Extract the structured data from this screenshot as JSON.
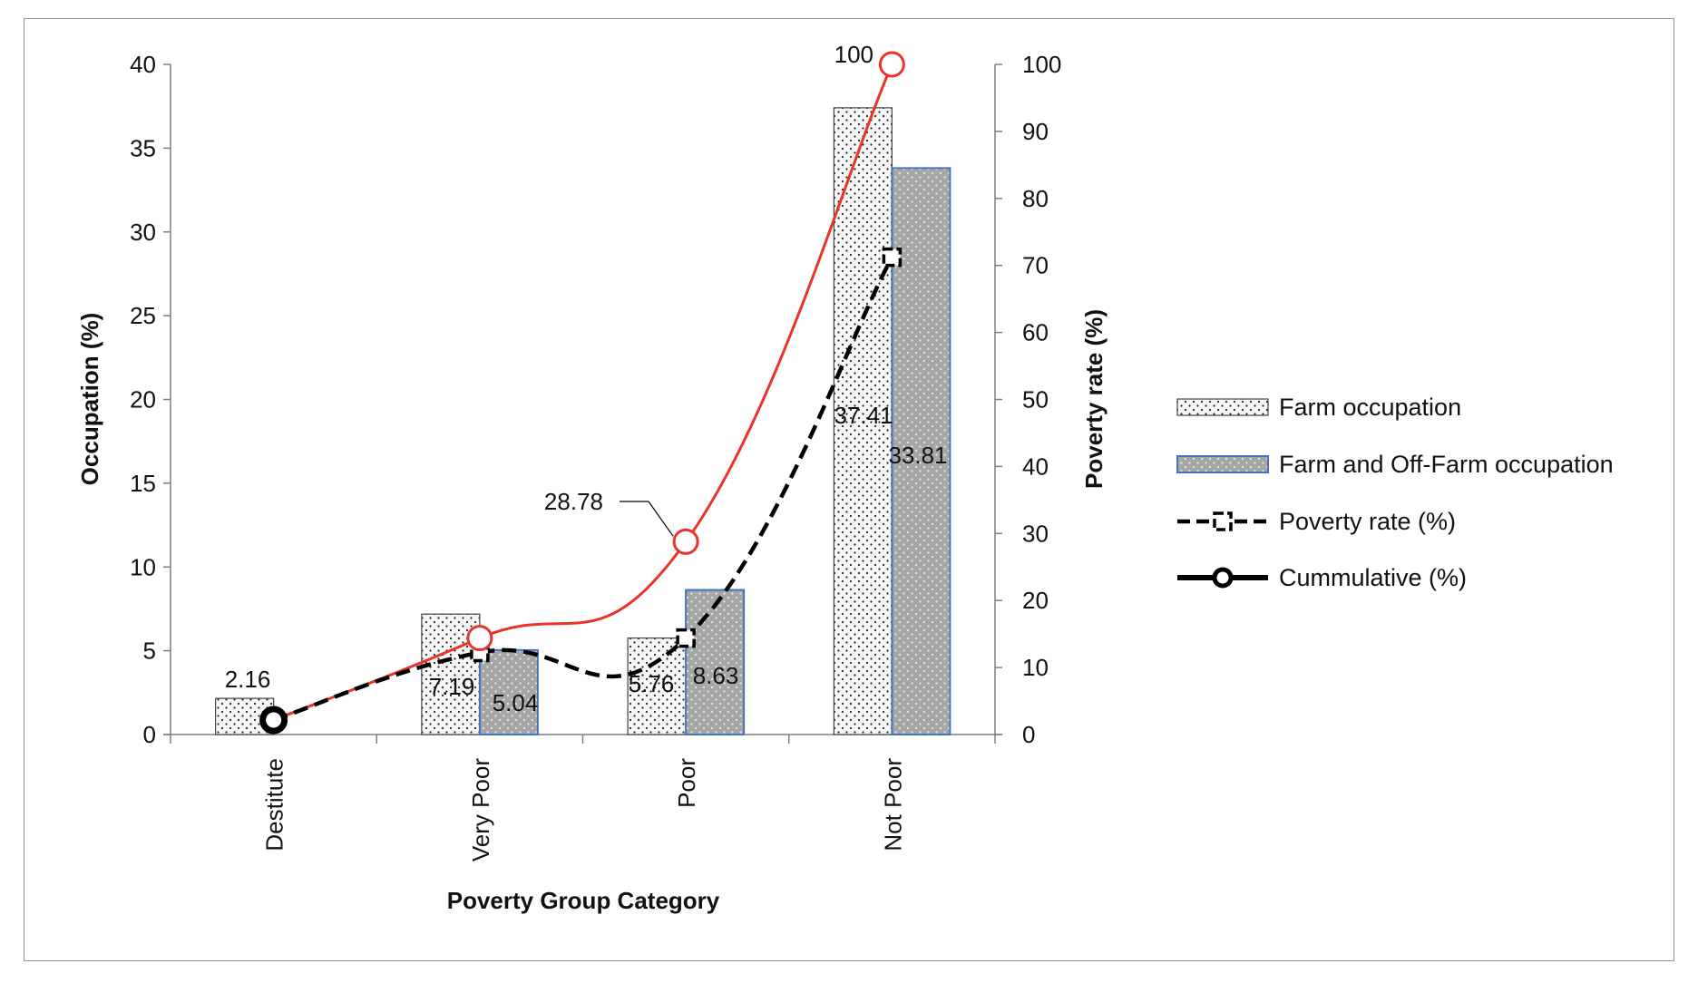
{
  "chart_data": {
    "type": "bar",
    "title": "",
    "categories": [
      "Destitute",
      "Very Poor",
      "Poor",
      "Not Poor"
    ],
    "xlabel": "Poverty Group Category",
    "ylabel": "Occupation (%)",
    "y2label": "Poverty rate (%)",
    "ylim": [
      0,
      40
    ],
    "y2lim": [
      0,
      100
    ],
    "yticks": [
      "0",
      "5",
      "10",
      "15",
      "20",
      "25",
      "30",
      "35",
      "40"
    ],
    "y2ticks": [
      "0",
      "10",
      "20",
      "30",
      "40",
      "50",
      "60",
      "70",
      "80",
      "90",
      "100"
    ],
    "legend_position": "right",
    "grid": false,
    "series": [
      {
        "name": "Farm occupation",
        "kind": "bar",
        "axis": "left",
        "values": [
          2.16,
          7.19,
          5.76,
          37.41
        ],
        "labels": [
          "2.16",
          "7.19",
          "5.76",
          "37.41"
        ],
        "color": "#f4f4f4",
        "edge": "#444444"
      },
      {
        "name": "Farm and Off-Farm occupation",
        "kind": "bar",
        "axis": "left",
        "values": [
          null,
          5.04,
          8.63,
          33.81
        ],
        "labels": [
          "",
          "5.04",
          "8.63",
          "33.81"
        ],
        "color": "#a6a6a6",
        "edge": "#4472c4"
      },
      {
        "name": "Poverty rate (%)",
        "kind": "line",
        "axis": "right",
        "values": [
          2.16,
          12.24,
          14.39,
          71.22
        ],
        "color": "#000000",
        "style": "dashed"
      },
      {
        "name": "Cummulative (%)",
        "kind": "line",
        "axis": "right",
        "values": [
          2.16,
          14.39,
          28.78,
          100
        ],
        "labels": [
          "",
          "",
          "28.78",
          "100"
        ],
        "color": "#e8342a",
        "style": "solid"
      }
    ]
  }
}
